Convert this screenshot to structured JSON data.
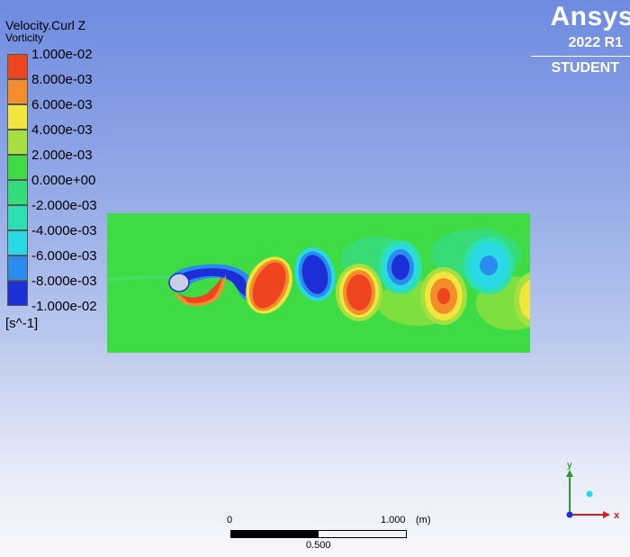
{
  "legend": {
    "title": "Velocity.Curl Z",
    "subtitle": "Vorticity",
    "ticks": [
      "1.000e-02",
      "8.000e-03",
      "6.000e-03",
      "4.000e-03",
      "2.000e-03",
      "0.000e+00",
      "-2.000e-03",
      "-4.000e-03",
      "-6.000e-03",
      "-8.000e-03",
      "-1.000e-02"
    ],
    "colors": [
      "#ee4420",
      "#f48e2c",
      "#f0e63c",
      "#a6e040",
      "#3fdb44",
      "#33dd7c",
      "#2ce0b0",
      "#29d9e6",
      "#2a8cec",
      "#1c2ed6"
    ],
    "unit": "[s^-1]"
  },
  "brand": {
    "name": "Ansys",
    "version": "2022 R1",
    "edition": "STUDENT"
  },
  "scale_bar": {
    "start_label": "0",
    "end_label": "1.000",
    "unit": "(m)",
    "mid_label": "0.500"
  },
  "axes": {
    "x_label": "x",
    "y_label": "y"
  }
}
